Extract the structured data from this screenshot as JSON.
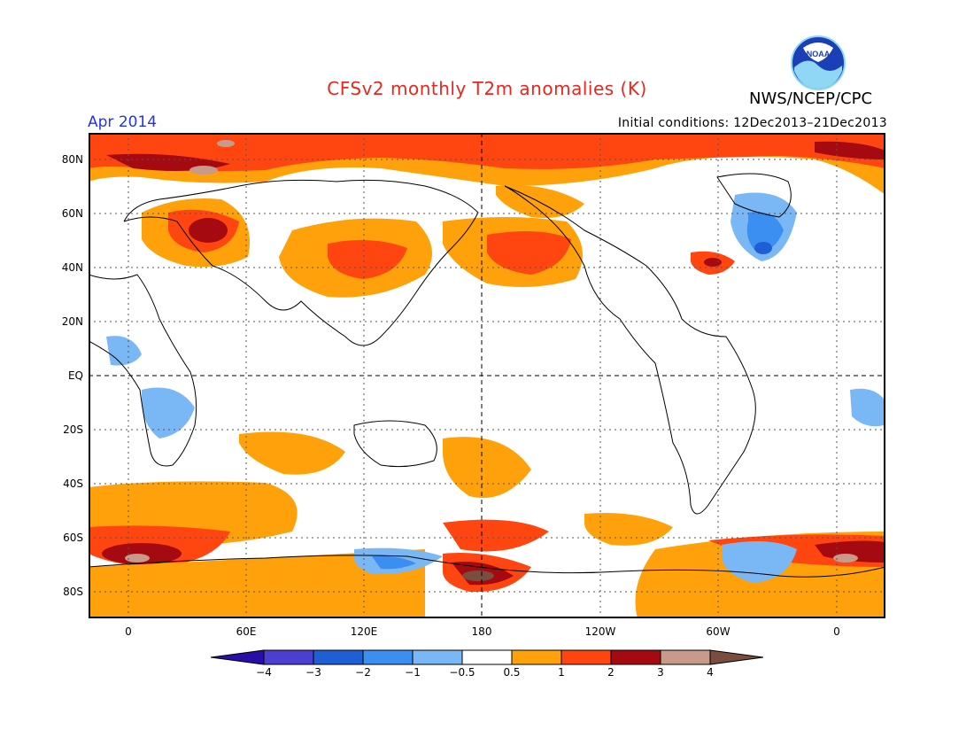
{
  "header": {
    "title": "CFSv2 monthly T2m anomalies (K)",
    "agency": "NWS/NCEP/CPC",
    "logo_text": "NOAA",
    "month": "Apr 2014",
    "initial_conditions": "Initial conditions: 12Dec2013–21Dec2013"
  },
  "map": {
    "lat_labels": [
      "80N",
      "60N",
      "40N",
      "20N",
      "EQ",
      "20S",
      "40S",
      "60S",
      "80S"
    ],
    "lon_labels": [
      "0",
      "60E",
      "120E",
      "180",
      "120W",
      "60W",
      "0"
    ]
  },
  "colorbar": {
    "labels": [
      "−4",
      "−3",
      "−2",
      "−1",
      "−0.5",
      "0.5",
      "1",
      "2",
      "3",
      "4"
    ],
    "colors": [
      "#2a0ea8",
      "#4a3fd1",
      "#1f5fd6",
      "#3b8ff0",
      "#7ab8f5",
      "#ffffff",
      "#ffa10a",
      "#ff4510",
      "#a50a10",
      "#c89a8a",
      "#7a4e3e"
    ]
  },
  "colors": {
    "title": "#e8261c",
    "month": "#2233ee",
    "warm1": "#ffa10a",
    "warm2": "#ff4510",
    "warm3": "#a50a10",
    "warm4": "#c89a8a",
    "cool1": "#7ab8f5",
    "cool2": "#3b8ff0",
    "cool3": "#1f5fd6"
  }
}
